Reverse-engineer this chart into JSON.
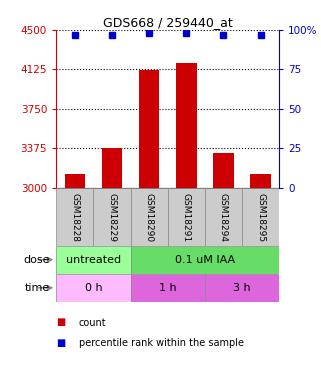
{
  "title": "GDS668 / 259440_at",
  "samples": [
    "GSM18228",
    "GSM18229",
    "GSM18290",
    "GSM18291",
    "GSM18294",
    "GSM18295"
  ],
  "bar_values": [
    3130,
    3380,
    4120,
    4190,
    3330,
    3130
  ],
  "percentile_values": [
    97,
    97,
    98,
    98,
    97,
    97
  ],
  "bar_color": "#cc0000",
  "dot_color": "#0000cc",
  "ylim_left": [
    3000,
    4500
  ],
  "yticks_left": [
    3000,
    3375,
    3750,
    4125,
    4500
  ],
  "ylim_right": [
    0,
    100
  ],
  "yticks_right": [
    0,
    25,
    50,
    75,
    100
  ],
  "dose_groups": [
    {
      "label": "untreated",
      "span": [
        0,
        2
      ],
      "color": "#99ff99"
    },
    {
      "label": "0.1 uM IAA",
      "span": [
        2,
        6
      ],
      "color": "#66dd66"
    }
  ],
  "time_groups": [
    {
      "label": "0 h",
      "span": [
        0,
        2
      ],
      "color": "#ffbbff"
    },
    {
      "label": "1 h",
      "span": [
        2,
        4
      ],
      "color": "#dd66dd"
    },
    {
      "label": "3 h",
      "span": [
        4,
        6
      ],
      "color": "#dd66dd"
    }
  ],
  "dose_label": "dose",
  "time_label": "time",
  "legend_bar_label": "count",
  "legend_dot_label": "percentile rank within the sample",
  "left_tick_color": "#cc0000",
  "right_tick_color": "#0000cc",
  "grid_color": "#000000",
  "background_color": "#ffffff",
  "bar_width": 0.55,
  "sample_cell_color": "#cccccc",
  "label_arrow_color": "#888888"
}
